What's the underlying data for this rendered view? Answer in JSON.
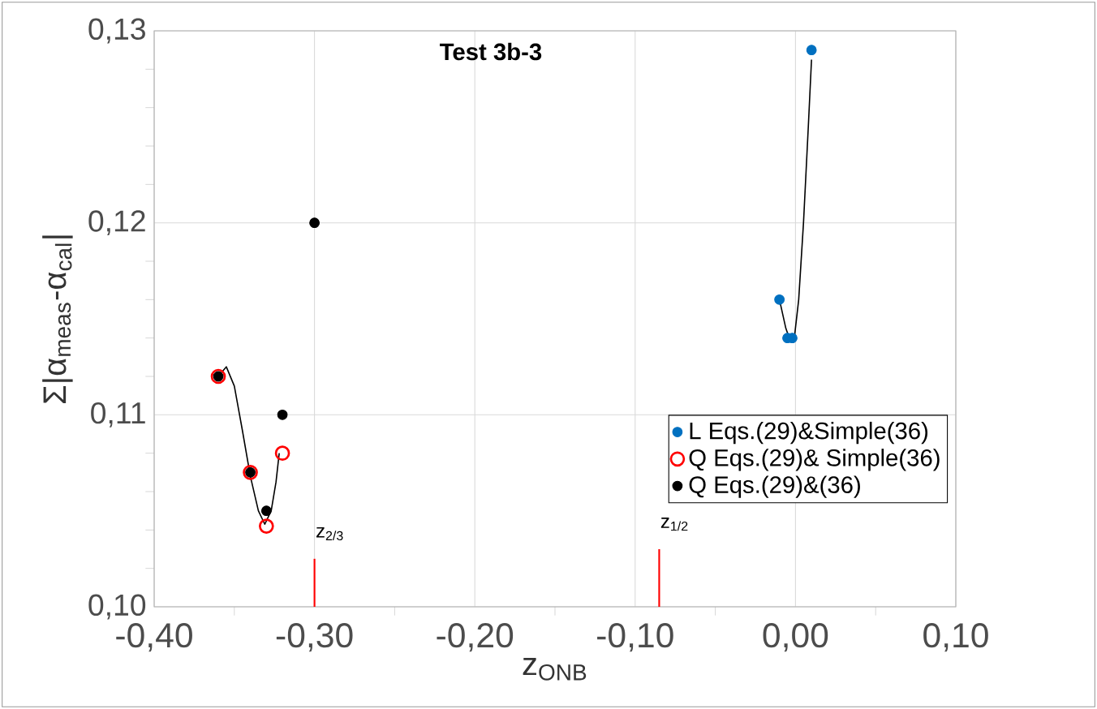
{
  "chart_data": {
    "type": "scatter",
    "title": "Test 3b-3",
    "xlabel": "z$_{ONB}$",
    "ylabel": "Σ|α$_{meas}$-α$_{cal}$|",
    "xlim": [
      -0.4,
      0.1
    ],
    "ylim": [
      0.1,
      0.13
    ],
    "xticks": [
      {
        "value": -0.4,
        "label": "-0,40"
      },
      {
        "value": -0.35,
        "label": null
      },
      {
        "value": -0.3,
        "label": "-0,30"
      },
      {
        "value": -0.25,
        "label": null
      },
      {
        "value": -0.2,
        "label": "-0,20"
      },
      {
        "value": -0.15,
        "label": null
      },
      {
        "value": -0.1,
        "label": "-0,10"
      },
      {
        "value": -0.05,
        "label": null
      },
      {
        "value": 0.0,
        "label": "0,00"
      },
      {
        "value": 0.05,
        "label": null
      },
      {
        "value": 0.1,
        "label": "0,10"
      }
    ],
    "yticks": [
      {
        "value": 0.1,
        "label": "0,10"
      },
      {
        "value": 0.102,
        "label": null
      },
      {
        "value": 0.104,
        "label": null
      },
      {
        "value": 0.106,
        "label": null
      },
      {
        "value": 0.108,
        "label": null
      },
      {
        "value": 0.11,
        "label": "0,11"
      },
      {
        "value": 0.112,
        "label": null
      },
      {
        "value": 0.114,
        "label": null
      },
      {
        "value": 0.116,
        "label": null
      },
      {
        "value": 0.118,
        "label": null
      },
      {
        "value": 0.12,
        "label": "0,12"
      },
      {
        "value": 0.122,
        "label": null
      },
      {
        "value": 0.124,
        "label": null
      },
      {
        "value": 0.126,
        "label": null
      },
      {
        "value": 0.128,
        "label": null
      },
      {
        "value": 0.13,
        "label": "0,13"
      }
    ],
    "grid": true,
    "legend": "bottom right",
    "series": [
      {
        "name": "L Eqs.(29)&Simple(36)",
        "marker": "circle",
        "color": "#0070c0",
        "x": [
          -0.01,
          -0.005,
          -0.002,
          0.01
        ],
        "values": [
          0.116,
          0.114,
          0.114,
          0.129
        ]
      },
      {
        "name": "Q Eqs.(29)& Simple(36)",
        "marker": "circle_open",
        "color": "#ff0000",
        "x": [
          -0.36,
          -0.34,
          -0.33,
          -0.32
        ],
        "values": [
          0.112,
          0.107,
          0.1042,
          0.108
        ]
      },
      {
        "name": "Q Eqs.(29)&(36)",
        "marker": "circle",
        "color": "#000000",
        "x": [
          -0.36,
          -0.34,
          -0.33,
          -0.32,
          -0.3
        ],
        "values": [
          0.112,
          0.107,
          0.105,
          0.11,
          0.12
        ]
      },
      {
        "type": "line",
        "marker": "none",
        "color": "#000000",
        "x": [
          -0.358,
          -0.355,
          -0.35,
          -0.345,
          -0.34,
          -0.335,
          -0.331,
          -0.327,
          -0.324,
          -0.322
        ],
        "values": [
          0.1122,
          0.1125,
          0.1115,
          0.1092,
          0.1068,
          0.105,
          0.1043,
          0.105,
          0.1065,
          0.108
        ]
      },
      {
        "type": "line",
        "marker": "none",
        "color": "#000000",
        "x": [
          -0.01,
          -0.006,
          -0.003,
          -0.001,
          0.002,
          0.005,
          0.008,
          0.01
        ],
        "values": [
          0.116,
          0.1145,
          0.1138,
          0.1138,
          0.116,
          0.12,
          0.125,
          0.1285
        ]
      },
      {
        "type": "line",
        "marker": "none",
        "color": "#ff0000",
        "x": [
          -0.3,
          -0.3
        ],
        "values": [
          0.1,
          0.1025
        ]
      },
      {
        "type": "line",
        "marker": "none",
        "color": "#ff0000",
        "x": [
          -0.085,
          -0.085
        ],
        "values": [
          0.1,
          0.103
        ]
      }
    ],
    "annotations": [
      {
        "text": "z$_{2/3}$",
        "x": -0.3,
        "y": 0.1025
      },
      {
        "text": "z$_{1/2}$",
        "x": -0.085,
        "y": 0.103
      }
    ]
  }
}
